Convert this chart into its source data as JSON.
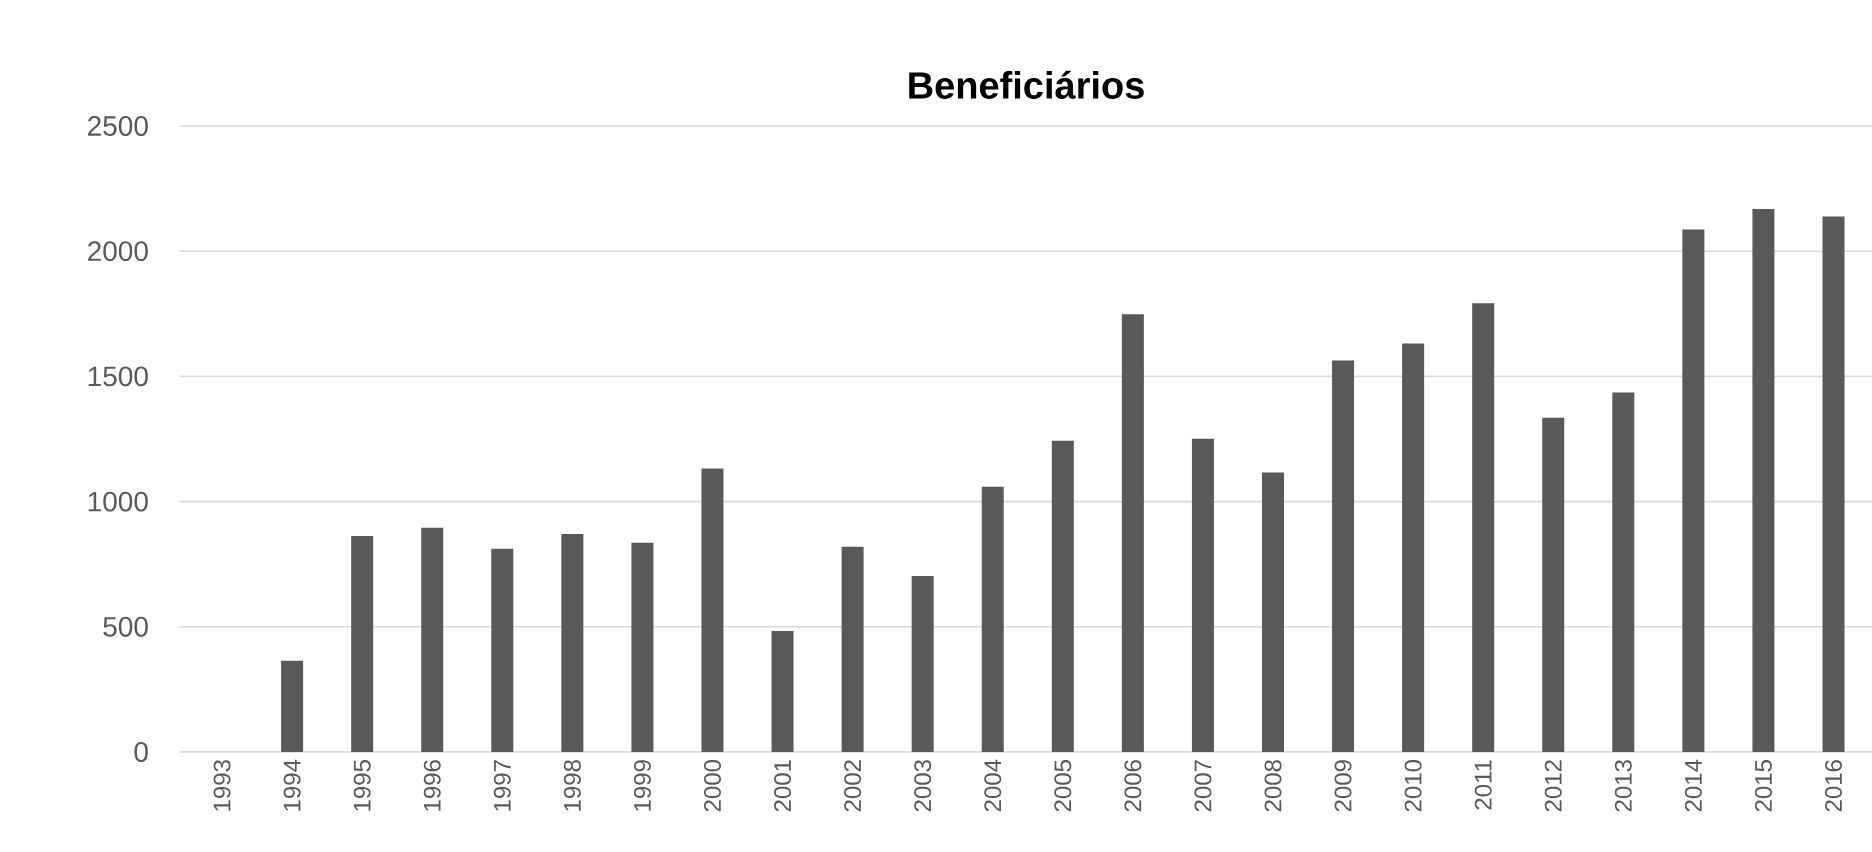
{
  "chart_data": {
    "type": "bar",
    "title": "Beneficiários",
    "categories": [
      "1993",
      "1994",
      "1995",
      "1996",
      "1997",
      "1998",
      "1999",
      "2000",
      "2001",
      "2002",
      "2003",
      "2004",
      "2005",
      "2006",
      "2007",
      "2008",
      "2009",
      "2010",
      "2011",
      "2012",
      "2013",
      "2014",
      "2015",
      "2016"
    ],
    "values": [
      0,
      364,
      863,
      896,
      812,
      871,
      836,
      1132,
      483,
      820,
      703,
      1059,
      1243,
      1748,
      1251,
      1116,
      1563,
      1631,
      1792,
      1335,
      1436,
      2087,
      2169,
      2139
    ],
    "color": "#595959",
    "ylim": [
      0,
      2500
    ],
    "yticks": [
      0,
      500,
      1000,
      1500,
      2000,
      2500
    ],
    "grid": "y"
  }
}
